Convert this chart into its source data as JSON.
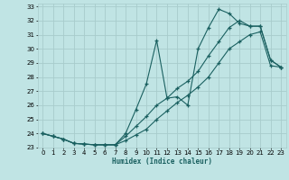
{
  "title": "",
  "xlabel": "Humidex (Indice chaleur)",
  "bg_color": "#c0e4e4",
  "grid_color": "#a8cccc",
  "line_color": "#1a6060",
  "xlim": [
    -0.5,
    23.5
  ],
  "ylim": [
    23,
    33.2
  ],
  "xticks": [
    0,
    1,
    2,
    3,
    4,
    5,
    6,
    7,
    8,
    9,
    10,
    11,
    12,
    13,
    14,
    15,
    16,
    17,
    18,
    19,
    20,
    21,
    22,
    23
  ],
  "yticks": [
    23,
    24,
    25,
    26,
    27,
    28,
    29,
    30,
    31,
    32,
    33
  ],
  "series1": [
    24.0,
    23.8,
    23.6,
    23.3,
    23.25,
    23.2,
    23.2,
    23.2,
    24.0,
    25.7,
    27.5,
    30.6,
    26.5,
    26.6,
    26.0,
    30.0,
    31.5,
    32.8,
    32.5,
    31.8,
    31.6,
    31.6,
    29.2,
    28.7
  ],
  "series2": [
    24.0,
    23.8,
    23.6,
    23.3,
    23.25,
    23.2,
    23.2,
    23.2,
    23.8,
    24.5,
    25.2,
    26.0,
    26.5,
    27.2,
    27.7,
    28.4,
    29.5,
    30.5,
    31.5,
    32.0,
    31.6,
    31.6,
    29.2,
    28.7
  ],
  "series3": [
    24.0,
    23.8,
    23.6,
    23.3,
    23.25,
    23.2,
    23.2,
    23.2,
    23.5,
    23.9,
    24.3,
    25.0,
    25.6,
    26.2,
    26.7,
    27.3,
    28.0,
    29.0,
    30.0,
    30.5,
    31.0,
    31.2,
    28.8,
    28.7
  ]
}
